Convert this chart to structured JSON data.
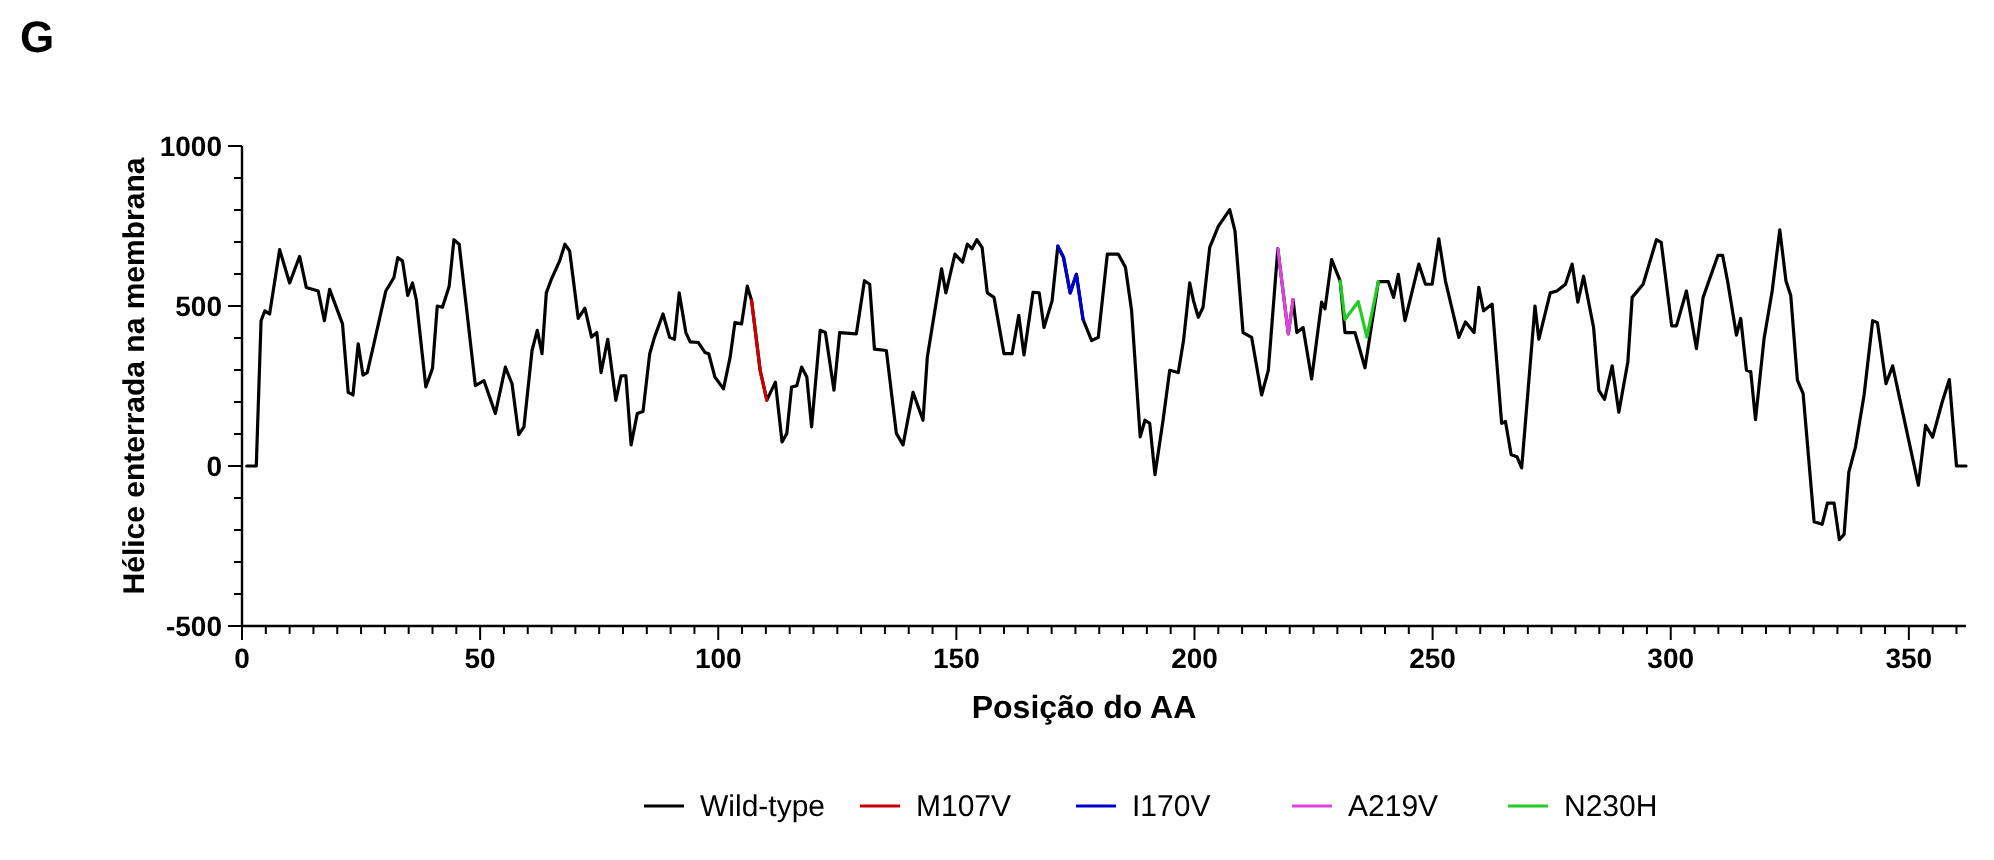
{
  "chart_data": {
    "type": "line",
    "title": "G",
    "xlabel": "Posição do AA",
    "ylabel": "Hélice enterrada na membrana",
    "xlim": [
      0,
      362
    ],
    "ylim": [
      -500,
      1000
    ],
    "xticks": [
      0,
      {
        "value": 5,
        "label": null
      },
      {
        "value": 10,
        "label": null
      },
      {
        "value": 15,
        "label": null
      },
      {
        "value": 20,
        "label": null
      },
      {
        "value": 25,
        "label": null
      },
      {
        "value": 30,
        "label": null
      },
      {
        "value": 35,
        "label": null
      },
      {
        "value": 40,
        "label": null
      },
      {
        "value": 45,
        "label": null
      },
      50,
      {
        "value": 55,
        "label": null
      },
      {
        "value": 60,
        "label": null
      },
      {
        "value": 65,
        "label": null
      },
      {
        "value": 70,
        "label": null
      },
      {
        "value": 75,
        "label": null
      },
      {
        "value": 80,
        "label": null
      },
      {
        "value": 85,
        "label": null
      },
      {
        "value": 90,
        "label": null
      },
      {
        "value": 95,
        "label": null
      },
      100,
      {
        "value": 105,
        "label": null
      },
      {
        "value": 110,
        "label": null
      },
      {
        "value": 115,
        "label": null
      },
      {
        "value": 120,
        "label": null
      },
      {
        "value": 125,
        "label": null
      },
      {
        "value": 130,
        "label": null
      },
      {
        "value": 135,
        "label": null
      },
      {
        "value": 140,
        "label": null
      },
      {
        "value": 145,
        "label": null
      },
      150,
      {
        "value": 155,
        "label": null
      },
      {
        "value": 160,
        "label": null
      },
      {
        "value": 165,
        "label": null
      },
      {
        "value": 170,
        "label": null
      },
      {
        "value": 175,
        "label": null
      },
      {
        "value": 180,
        "label": null
      },
      {
        "value": 185,
        "label": null
      },
      {
        "value": 190,
        "label": null
      },
      {
        "value": 195,
        "label": null
      },
      200,
      {
        "value": 205,
        "label": null
      },
      {
        "value": 210,
        "label": null
      },
      {
        "value": 215,
        "label": null
      },
      {
        "value": 220,
        "label": null
      },
      {
        "value": 225,
        "label": null
      },
      {
        "value": 230,
        "label": null
      },
      {
        "value": 235,
        "label": null
      },
      {
        "value": 240,
        "label": null
      },
      {
        "value": 245,
        "label": null
      },
      250,
      {
        "value": 255,
        "label": null
      },
      {
        "value": 260,
        "label": null
      },
      {
        "value": 265,
        "label": null
      },
      {
        "value": 270,
        "label": null
      },
      {
        "value": 275,
        "label": null
      },
      {
        "value": 280,
        "label": null
      },
      {
        "value": 285,
        "label": null
      },
      {
        "value": 290,
        "label": null
      },
      {
        "value": 295,
        "label": null
      },
      300,
      {
        "value": 305,
        "label": null
      },
      {
        "value": 310,
        "label": null
      },
      {
        "value": 315,
        "label": null
      },
      {
        "value": 320,
        "label": null
      },
      {
        "value": 325,
        "label": null
      },
      {
        "value": 330,
        "label": null
      },
      {
        "value": 335,
        "label": null
      },
      {
        "value": 340,
        "label": null
      },
      {
        "value": 345,
        "label": null
      },
      350,
      {
        "value": 355,
        "label": null
      },
      {
        "value": 360,
        "label": null
      }
    ],
    "yticks": [
      -500,
      {
        "value": -400,
        "label": null
      },
      {
        "value": -300,
        "label": null
      },
      {
        "value": -200,
        "label": null
      },
      {
        "value": -100,
        "label": null
      },
      0,
      {
        "value": 100,
        "label": null
      },
      {
        "value": 200,
        "label": null
      },
      {
        "value": 300,
        "label": null
      },
      {
        "value": 400,
        "label": null
      },
      500,
      {
        "value": 600,
        "label": null
      },
      {
        "value": 700,
        "label": null
      },
      {
        "value": 800,
        "label": null
      },
      {
        "value": 900,
        "label": null
      },
      1000
    ],
    "grid": false,
    "legend": "bottom",
    "marker": "none",
    "line_style": "solid",
    "series": [
      {
        "name": "Wild-type",
        "color": "#000000",
        "x": [
          1,
          3,
          4,
          4.8,
          5.8,
          7.9,
          10,
          12.1,
          13.5,
          16,
          17.3,
          18.4,
          21.1,
          22.3,
          23.3,
          24.4,
          25.4,
          26.3,
          27.7,
          30.2,
          31.9,
          32.7,
          33.7,
          34.8,
          35.8,
          36.6,
          38.6,
          40,
          41,
          42.1,
          43.5,
          44.5,
          45.6,
          49,
          50.8,
          53.2,
          55.3,
          56.7,
          58.1,
          59.2,
          60.9,
          62,
          63,
          63.9,
          65,
          66.7,
          67.8,
          68.8,
          70.6,
          72,
          73.4,
          74.5,
          75.4,
          76.8,
          78.5,
          79.6,
          80.6,
          81.7,
          83,
          84.2,
          85.6,
          86.6,
          88.4,
          89.8,
          90.8,
          91.8,
          93.2,
          94.1,
          95.8,
          97.2,
          98,
          99.3,
          101.1,
          102.5,
          103.5,
          104.9,
          106.1,
          107,
          108.8,
          110.2,
          112,
          113.4,
          114.4,
          115.4,
          116.5,
          117.5,
          118.6,
          119.6,
          121.4,
          122.5,
          124.3,
          125.5,
          129,
          130.7,
          131.8,
          132.8,
          135.3,
          137.4,
          138.8,
          140.9,
          143,
          143.9,
          146.9,
          147.8,
          149.7,
          151.3,
          152.3,
          153.3,
          154.3,
          155.4,
          156.5,
          157.9,
          160,
          161.7,
          163.1,
          164.2,
          166.1,
          167.4,
          168.4,
          170.1,
          171.3,
          172.5,
          173.9,
          175.2,
          176.6,
          178.4,
          179.8,
          181.7,
          184,
          185.5,
          186.8,
          188.6,
          189.6,
          190.6,
          191.7,
          193.4,
          194.8,
          196.6,
          197.7,
          199,
          199.8,
          200.8,
          201.8,
          203.2,
          205,
          207.4,
          208.5,
          210.2,
          212,
          214.1,
          215.5,
          217.5,
          219.7,
          220.7,
          221.5,
          222.8,
          224.6,
          226.7,
          227.4,
          228.8,
          230.6,
          231.6,
          233.7,
          235.8,
          238.6,
          240.7,
          241.8,
          242.8,
          244.2,
          247.1,
          248.5,
          249.9,
          251.3,
          252.7,
          255.5,
          256.9,
          258.7,
          259.7,
          260.7,
          262.5,
          264.5,
          265.3,
          266.5,
          267.7,
          268.7,
          271.5,
          272.3,
          274.7,
          276.1,
          277.9,
          279.3,
          280.5,
          281.7,
          283.8,
          284.9,
          286.1,
          287.7,
          289.1,
          291,
          291.9,
          294.2,
          297,
          298,
          300.2,
          301.2,
          303.3,
          305.4,
          306.8,
          309.9,
          310.9,
          311.9,
          313.8,
          314.7,
          315.9,
          316.8,
          317.8,
          319.6,
          321.3,
          322.9,
          324.2,
          325.2,
          326.6,
          327.8,
          330.1,
          331.8,
          332.9,
          334.3,
          335.4,
          336.4,
          337.4,
          338.8,
          340.6,
          342.4,
          343.4,
          345.2,
          346.6,
          352,
          353.5,
          355,
          357,
          358.5,
          360,
          362
        ],
        "values": [
          0,
          0,
          454,
          485,
          475,
          676,
          572,
          655,
          558,
          547,
          454,
          552,
          444,
          230,
          222,
          382,
          284,
          292,
          382,
          547,
          589,
          651,
          641,
          533,
          572,
          520,
          247,
          305,
          500,
          496,
          562,
          707,
          693,
          251,
          267,
          164,
          309,
          257,
          98,
          122,
          361,
          424,
          351,
          541,
          585,
          641,
          693,
          672,
          461,
          493,
          403,
          417,
          292,
          396,
          205,
          282,
          282,
          66,
          164,
          170,
          350,
          402,
          475,
          402,
          396,
          541,
          417,
          388,
          386,
          355,
          351,
          278,
          241,
          340,
          448,
          444,
          562,
          517,
          299,
          206,
          262,
          75,
          102,
          247,
          251,
          309,
          278,
          122,
          424,
          417,
          237,
          417,
          413,
          579,
          568,
          365,
          361,
          102,
          66,
          230,
          143,
          340,
          616,
          541,
          662,
          637,
          693,
          679,
          707,
          683,
          541,
          527,
          351,
          351,
          471,
          347,
          543,
          541,
          433,
          516,
          687,
          652,
          541,
          599,
          458,
          392,
          402,
          662,
          662,
          621,
          485,
          91,
          143,
          133,
          -27,
          143,
          299,
          292,
          392,
          572,
          516,
          465,
          496,
          683,
          749,
          801,
          735,
          417,
          402,
          222,
          299,
          679,
          413,
          520,
          417,
          433,
          272,
          512,
          491,
          645,
          578,
          417,
          417,
          307,
          576,
          576,
          527,
          599,
          454,
          631,
          568,
          568,
          710,
          578,
          402,
          450,
          417,
          558,
          485,
          506,
          133,
          139,
          35,
          29,
          -6,
          500,
          396,
          541,
          547,
          568,
          631,
          512,
          593,
          433,
          236,
          208,
          313,
          168,
          326,
          527,
          568,
          707,
          699,
          438,
          438,
          547,
          367,
          527,
          658,
          658,
          581,
          409,
          461,
          299,
          295,
          145,
          398,
          547,
          738,
          578,
          533,
          268,
          226,
          -174,
          -182,
          -116,
          -116,
          -230,
          -214,
          -19,
          60,
          222,
          454,
          448,
          257,
          313,
          -60,
          127,
          90,
          200,
          270,
          0,
          0
        ]
      },
      {
        "name": "M107V",
        "color": "#cc0000",
        "x": [
          107,
          108.8,
          110.2
        ],
        "values": [
          517,
          299,
          206
        ]
      },
      {
        "name": "I170V",
        "color": "#0000cc",
        "x": [
          171.3,
          172.5,
          173.9,
          175.2,
          176.6
        ],
        "values": [
          687,
          652,
          541,
          599,
          458
        ]
      },
      {
        "name": "A219V",
        "color": "#dd44dd",
        "x": [
          217.5,
          219.7,
          220.7
        ],
        "values": [
          679,
          413,
          520
        ]
      },
      {
        "name": "N230H",
        "color": "#22cc22",
        "x": [
          230.6,
          231.6,
          234.4,
          236.2,
          238.6
        ],
        "values": [
          578,
          458,
          514,
          403,
          576
        ]
      }
    ]
  }
}
